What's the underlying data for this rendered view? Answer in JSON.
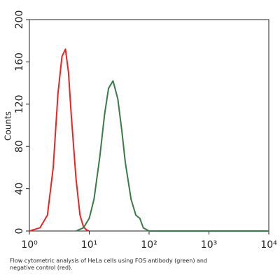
{
  "chart_data": {
    "type": "line",
    "caption": "Flow cytometric analysis of HeLa cells using FOS antibody (green) and negative control (red).",
    "y_label": "Counts",
    "xscale": "log",
    "xlim": [
      1,
      10000
    ],
    "ylim": [
      0,
      200
    ],
    "xticks": [
      {
        "value": 1,
        "label": "10⁰"
      },
      {
        "value": 10,
        "label": "10¹"
      },
      {
        "value": 100,
        "label": "10²"
      },
      {
        "value": 1000,
        "label": "10³"
      },
      {
        "value": 10000,
        "label": "10⁴"
      }
    ],
    "yticks": [
      0,
      40,
      80,
      120,
      160,
      200
    ],
    "series": [
      {
        "color": "#ee2222",
        "x": [
          1,
          1.5,
          2,
          2.5,
          3,
          3.5,
          4,
          4.5,
          5,
          6,
          7,
          8,
          9,
          10
        ],
        "values": [
          0,
          3,
          15,
          60,
          130,
          165,
          172,
          150,
          110,
          50,
          15,
          4,
          1,
          0
        ]
      },
      {
        "color": "#3a7a45",
        "x": [
          6,
          8,
          10,
          12,
          15,
          18,
          21,
          25,
          30,
          35,
          40,
          50,
          60,
          70,
          80,
          100,
          1000,
          10000
        ],
        "values": [
          0,
          3,
          12,
          30,
          70,
          110,
          135,
          142,
          125,
          95,
          65,
          30,
          15,
          12,
          3,
          0,
          0,
          0
        ]
      }
    ]
  }
}
